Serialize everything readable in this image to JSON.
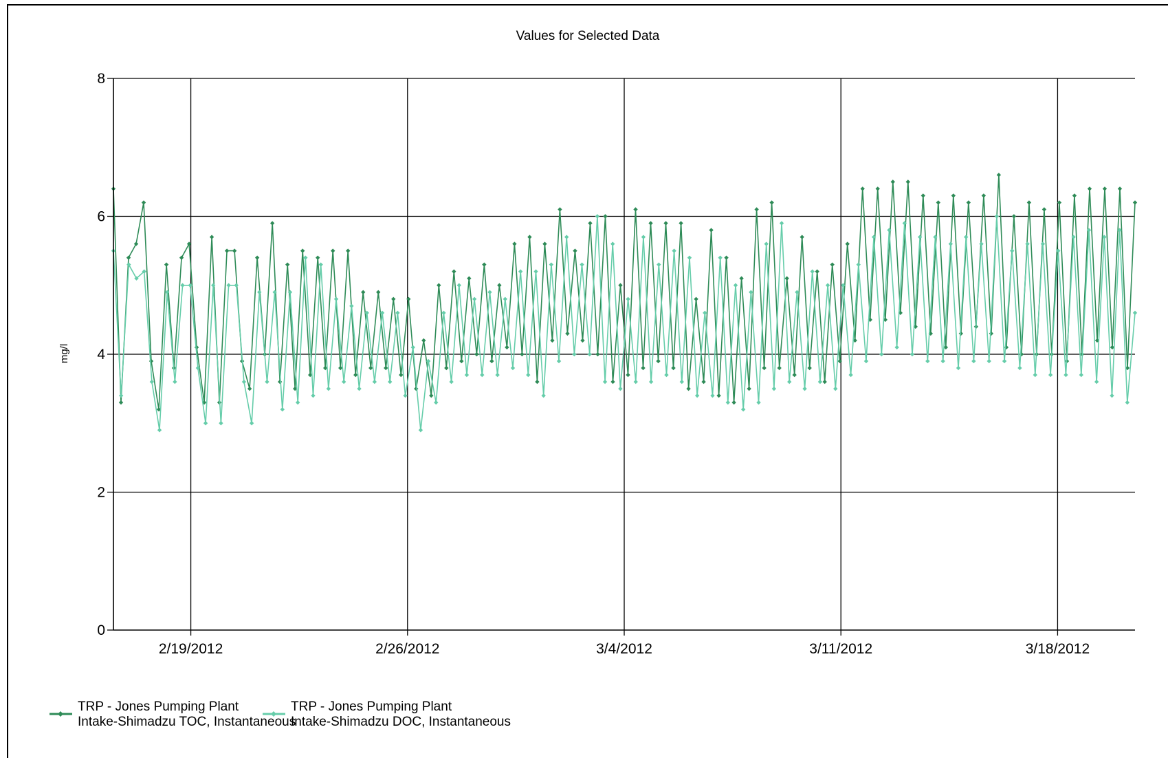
{
  "chart_data": {
    "type": "line",
    "title": "Values for Selected Data",
    "xlabel": "",
    "ylabel": "mg/l",
    "ylim": [
      0,
      8
    ],
    "yticks": [
      "0",
      "2",
      "4",
      "6",
      "8"
    ],
    "xlim": [
      "2012-02-16T12:00",
      "2012-03-20T12:00"
    ],
    "xticks": [
      "2/19/2012",
      "2/26/2012",
      "3/4/2012",
      "3/11/2012",
      "3/18/2012"
    ],
    "grid": true,
    "legend_position": "bottom-left",
    "series": [
      {
        "name": "TRP - Jones Pumping Plant Intake-Shimadzu TOC, Instantaneous",
        "legend_lines": [
          "TRP - Jones Pumping Plant",
          "Intake-Shimadzu TOC, Instantaneous"
        ],
        "color": "#2e8b57",
        "x_start": "2012-02-16T12:00",
        "x_end": "2012-03-20T12:00",
        "values": [
          6.4,
          3.3,
          5.4,
          5.6,
          6.2,
          3.9,
          3.2,
          5.3,
          3.8,
          5.4,
          5.6,
          4.1,
          3.3,
          5.7,
          3.3,
          5.5,
          5.5,
          3.9,
          3.5,
          5.4,
          4.0,
          5.9,
          3.6,
          5.3,
          3.5,
          5.5,
          3.7,
          5.4,
          3.8,
          5.5,
          3.8,
          5.5,
          3.7,
          4.9,
          3.8,
          4.9,
          3.8,
          4.8,
          3.7,
          4.8,
          3.5,
          4.2,
          3.4,
          5.0,
          3.8,
          5.2,
          3.9,
          5.1,
          4.0,
          5.3,
          3.9,
          5.0,
          4.1,
          5.6,
          4.0,
          5.7,
          3.6,
          5.6,
          4.2,
          6.1,
          4.3,
          5.5,
          4.2,
          5.9,
          4.0,
          6.0,
          3.6,
          5.0,
          3.7,
          6.1,
          3.8,
          5.9,
          3.9,
          5.9,
          3.8,
          5.9,
          3.5,
          4.8,
          3.6,
          5.8,
          3.4,
          5.4,
          3.3,
          5.1,
          3.5,
          6.1,
          3.8,
          6.2,
          3.8,
          5.1,
          3.7,
          5.7,
          3.8,
          5.2,
          3.6,
          5.3,
          3.9,
          5.6,
          4.2,
          6.4,
          4.5,
          6.4,
          4.5,
          6.5,
          4.6,
          6.5,
          4.4,
          6.3,
          4.3,
          6.2,
          4.1,
          6.3,
          4.3,
          6.2,
          4.4,
          6.3,
          4.3,
          6.6,
          4.1,
          6.0,
          4.0,
          6.2,
          4.0,
          6.1,
          4.0,
          6.2,
          3.9,
          6.3,
          4.0,
          6.4,
          4.2,
          6.4,
          4.1,
          6.4,
          3.8,
          6.2
        ]
      },
      {
        "name": "TRP - Jones Pumping Plant Intake-Shimadzu DOC, Instantaneous",
        "legend_lines": [
          "TRP - Jones Pumping Plant",
          "Intake-Shimadzu DOC, Instantaneous"
        ],
        "color": "#66cdaa",
        "x_start": "2012-02-16T12:00",
        "x_end": "2012-03-20T12:00",
        "values": [
          5.5,
          3.4,
          5.3,
          5.1,
          5.2,
          3.6,
          2.9,
          4.9,
          3.6,
          5.0,
          5.0,
          3.8,
          3.0,
          5.0,
          3.0,
          5.0,
          5.0,
          3.6,
          3.0,
          4.9,
          3.6,
          4.9,
          3.2,
          4.9,
          3.3,
          5.4,
          3.4,
          5.3,
          3.5,
          4.8,
          3.6,
          4.7,
          3.5,
          4.6,
          3.6,
          4.6,
          3.6,
          4.6,
          3.4,
          4.1,
          2.9,
          3.9,
          3.3,
          4.6,
          3.6,
          5.0,
          3.7,
          4.8,
          3.7,
          4.9,
          3.7,
          4.8,
          3.8,
          5.2,
          3.7,
          5.2,
          3.4,
          5.3,
          3.9,
          5.7,
          4.0,
          5.3,
          4.0,
          6.0,
          3.6,
          5.6,
          3.5,
          4.8,
          3.6,
          5.7,
          3.6,
          5.3,
          3.7,
          5.5,
          3.6,
          5.4,
          3.4,
          4.6,
          3.4,
          5.4,
          3.3,
          5.0,
          3.2,
          4.9,
          3.3,
          5.6,
          3.5,
          5.9,
          3.6,
          4.9,
          3.5,
          5.2,
          3.6,
          5.0,
          3.5,
          5.0,
          3.7,
          5.3,
          3.9,
          5.7,
          4.0,
          5.8,
          4.1,
          5.9,
          4.0,
          5.7,
          3.9,
          5.7,
          3.9,
          5.6,
          3.8,
          5.7,
          3.9,
          5.6,
          3.9,
          6.0,
          3.9,
          5.5,
          3.8,
          5.6,
          3.7,
          5.6,
          3.7,
          5.5,
          3.7,
          5.7,
          3.7,
          5.8,
          3.6,
          5.7,
          3.4,
          5.8,
          3.3,
          4.6
        ]
      }
    ]
  }
}
